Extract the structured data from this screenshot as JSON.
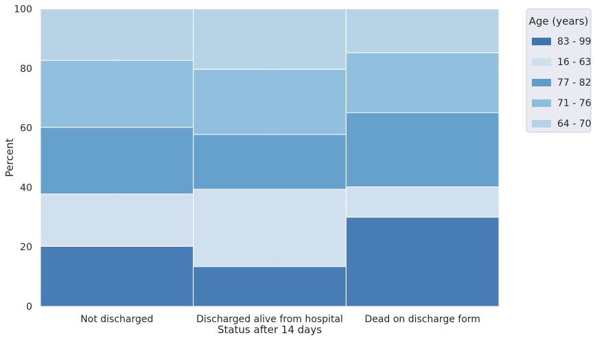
{
  "chart_data": {
    "type": "bar",
    "stacked": true,
    "normalized": true,
    "title": "",
    "xlabel": "Status after 14 days",
    "ylabel": "Percent",
    "ylim": [
      0,
      100
    ],
    "yticks": [
      "0",
      "20",
      "40",
      "60",
      "80",
      "100"
    ],
    "categories": [
      "Not discharged",
      "Discharged alive from hospital",
      "Dead on discharge form"
    ],
    "series": [
      {
        "name": "83 - 99",
        "values": [
          20.2,
          13.4,
          30.0
        ],
        "color": "#3f76b1"
      },
      {
        "name": "16 - 63",
        "values": [
          17.6,
          26.0,
          10.2
        ],
        "color": "#d0dfee"
      },
      {
        "name": "77 - 82",
        "values": [
          22.4,
          18.4,
          24.9
        ],
        "color": "#5f9cca"
      },
      {
        "name": "71 - 76",
        "values": [
          22.5,
          21.9,
          20.2
        ],
        "color": "#8cbedd"
      },
      {
        "name": "64 - 70",
        "values": [
          17.3,
          20.3,
          14.7
        ],
        "color": "#b4d3e6"
      }
    ],
    "legend": {
      "title": "Age (years)",
      "placement": "right, outside plot"
    },
    "grid": true,
    "background_color": "#eaeaf2",
    "grid_color": "#ffffff"
  }
}
